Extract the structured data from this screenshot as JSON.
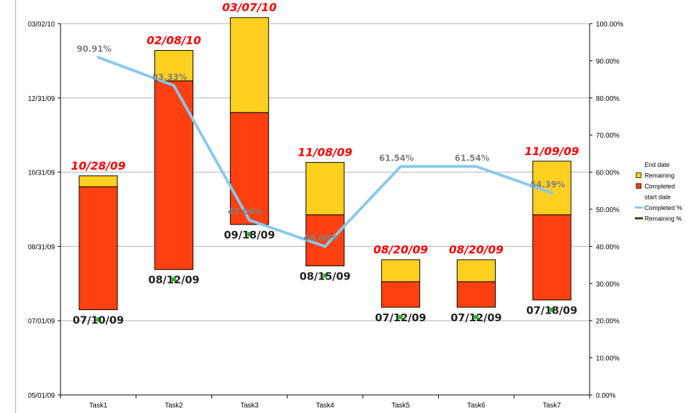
{
  "chart_data": {
    "type": "bar",
    "stacked": true,
    "categories": [
      "Task1",
      "Task2",
      "Task3",
      "Task4",
      "Task5",
      "Task6",
      "Task7"
    ],
    "start_dates": [
      "07/10/09",
      "08/12/09",
      "09/18/09",
      "08/15/09",
      "07/12/09",
      "07/12/09",
      "07/18/09"
    ],
    "end_dates": [
      "10/28/09",
      "02/08/10",
      "03/07/10",
      "11/08/09",
      "08/20/09",
      "08/20/09",
      "11/09/09"
    ],
    "status_dates": [
      "10/19/09",
      "01/14/10",
      "12/19/09",
      "09/26/09",
      "08/02/09",
      "08/02/09",
      "09/26/09"
    ],
    "series": [
      {
        "name": "Completed",
        "color": "#ff4010",
        "axis": "left-dates"
      },
      {
        "name": "Remaining",
        "color": "#ffd020",
        "axis": "left-dates"
      },
      {
        "name": "Completed %",
        "color": "#88c8f0",
        "axis": "right-percent",
        "values": [
          90.91,
          83.33,
          47.06,
          40.0,
          61.54,
          61.54,
          54.39
        ],
        "labels": [
          "90.91%",
          "83.33%",
          "47.06%",
          "40.00%",
          "61.54%",
          "61.54%",
          "54.39%"
        ]
      }
    ],
    "y_left": {
      "min": "05/01/09",
      "max": "03/02/10",
      "ticks": [
        "05/01/09",
        "07/01/09",
        "08/31/09",
        "10/31/09",
        "12/31/09",
        "03/02/10"
      ]
    },
    "y_right": {
      "min": 0,
      "max": 100,
      "ticks": [
        "0.00%",
        "10.00%",
        "20.00%",
        "30.00%",
        "40.00%",
        "50.00%",
        "60.00%",
        "70.00%",
        "80.00%",
        "90.00%",
        "100.00%"
      ]
    },
    "legend": {
      "placement": "right",
      "items": [
        {
          "label": "End date",
          "kind": "none"
        },
        {
          "label": "Remaining",
          "kind": "box",
          "color": "#ffd020"
        },
        {
          "label": "Completed",
          "kind": "box",
          "color": "#ff4010"
        },
        {
          "label": "start date",
          "kind": "none"
        },
        {
          "label": "Completed %",
          "kind": "line",
          "color": "#88c8f0"
        },
        {
          "label": "Remaining %",
          "kind": "line",
          "color": "#334400"
        }
      ]
    },
    "grid": true
  }
}
